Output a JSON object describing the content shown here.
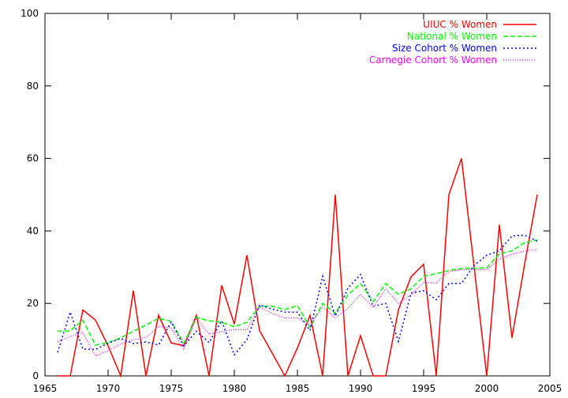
{
  "chart_data": {
    "type": "line",
    "title": "",
    "xlabel": "",
    "ylabel": "",
    "xlim": [
      1965,
      2005
    ],
    "ylim": [
      0,
      100
    ],
    "xticks": [
      1965,
      1970,
      1975,
      1980,
      1985,
      1990,
      1995,
      2000,
      2005
    ],
    "yticks": [
      0,
      20,
      40,
      60,
      80,
      100
    ],
    "grid": false,
    "legend_position": "top-right",
    "series": [
      {
        "name": "UIUC % Women",
        "color": "#ff0000",
        "dash": "solid",
        "x": [
          1966,
          1967,
          1968,
          1969,
          1970,
          1971,
          1972,
          1973,
          1974,
          1975,
          1976,
          1977,
          1978,
          1979,
          1980,
          1981,
          1982,
          1983,
          1984,
          1985,
          1986,
          1987,
          1988,
          1989,
          1990,
          1991,
          1992,
          1993,
          1994,
          1995,
          1996,
          1997,
          1998,
          1999,
          2000,
          2001,
          2002,
          2003,
          2004
        ],
        "y": [
          0,
          0,
          18.2,
          15.4,
          8.3,
          0,
          23.5,
          0,
          16.7,
          9.1,
          8.3,
          16.7,
          0,
          25,
          14.3,
          33.3,
          12.5,
          6.3,
          0,
          7.7,
          16.7,
          0,
          50,
          0,
          11.1,
          0,
          0,
          18.2,
          27.3,
          30.8,
          0,
          50,
          60,
          30,
          0,
          41.7,
          10.5,
          30.8,
          50
        ]
      },
      {
        "name": "National % Women",
        "color": "#00ff00",
        "dash": "dashed",
        "x": [
          1966,
          1967,
          1968,
          1969,
          1970,
          1971,
          1972,
          1973,
          1974,
          1975,
          1976,
          1977,
          1978,
          1979,
          1980,
          1981,
          1982,
          1983,
          1984,
          1985,
          1986,
          1987,
          1988,
          1989,
          1990,
          1991,
          1992,
          1993,
          1994,
          1995,
          1996,
          1997,
          1998,
          1999,
          2000,
          2001,
          2002,
          2003,
          2004
        ],
        "y": [
          12.3,
          12.4,
          15.4,
          8.5,
          9.2,
          10.5,
          12.3,
          14,
          15.9,
          15,
          9,
          16.1,
          15.2,
          14.8,
          13.6,
          14.8,
          19.2,
          19.2,
          18.3,
          19.4,
          13.4,
          20,
          17.3,
          22.3,
          25.5,
          20.5,
          25.5,
          22.5,
          24,
          27.5,
          28.2,
          29.1,
          29.6,
          29.7,
          29.8,
          33.7,
          34.5,
          36.8,
          37.5
        ]
      },
      {
        "name": "Size Cohort % Women",
        "color": "#0000ff",
        "dash": "dotted",
        "x": [
          1966,
          1967,
          1968,
          1969,
          1970,
          1971,
          1972,
          1973,
          1974,
          1975,
          1976,
          1977,
          1978,
          1979,
          1980,
          1981,
          1982,
          1983,
          1984,
          1985,
          1986,
          1987,
          1988,
          1989,
          1990,
          1991,
          1992,
          1993,
          1994,
          1995,
          1996,
          1997,
          1998,
          1999,
          2000,
          2001,
          2002,
          2003,
          2004
        ],
        "y": [
          6.5,
          17.6,
          7.4,
          7.3,
          9,
          10.3,
          8.9,
          9.4,
          8.5,
          14.9,
          8.3,
          12.3,
          9.2,
          15.2,
          5.8,
          10,
          19.6,
          18.4,
          17.6,
          17.6,
          12.5,
          27.5,
          16.5,
          24.2,
          28,
          19.2,
          20,
          9.5,
          22.8,
          23.5,
          21,
          25.5,
          25.5,
          30.5,
          33.3,
          34.5,
          38.6,
          38.8,
          37.2
        ]
      },
      {
        "name": "Carnegie Cohort % Women",
        "color": "#ff00ff",
        "dash": "dotted-fine",
        "x": [
          1966,
          1967,
          1968,
          1969,
          1970,
          1971,
          1972,
          1973,
          1974,
          1975,
          1976,
          1977,
          1978,
          1979,
          1980,
          1981,
          1982,
          1983,
          1984,
          1985,
          1986,
          1987,
          1988,
          1989,
          1990,
          1991,
          1992,
          1993,
          1994,
          1995,
          1996,
          1997,
          1998,
          1999,
          2000,
          2001,
          2002,
          2003,
          2004
        ],
        "y": [
          9.5,
          10.8,
          12,
          5.5,
          6.9,
          8.8,
          10,
          10.6,
          13.6,
          13.3,
          7.3,
          16,
          11.5,
          12.2,
          12.8,
          12.7,
          19,
          17.3,
          16,
          16,
          14,
          19,
          16,
          18.6,
          22.5,
          18.9,
          24,
          20,
          22.4,
          25.8,
          25.6,
          28.8,
          29.3,
          29.3,
          29.3,
          32.2,
          33.6,
          34.4,
          34.9
        ]
      }
    ]
  }
}
